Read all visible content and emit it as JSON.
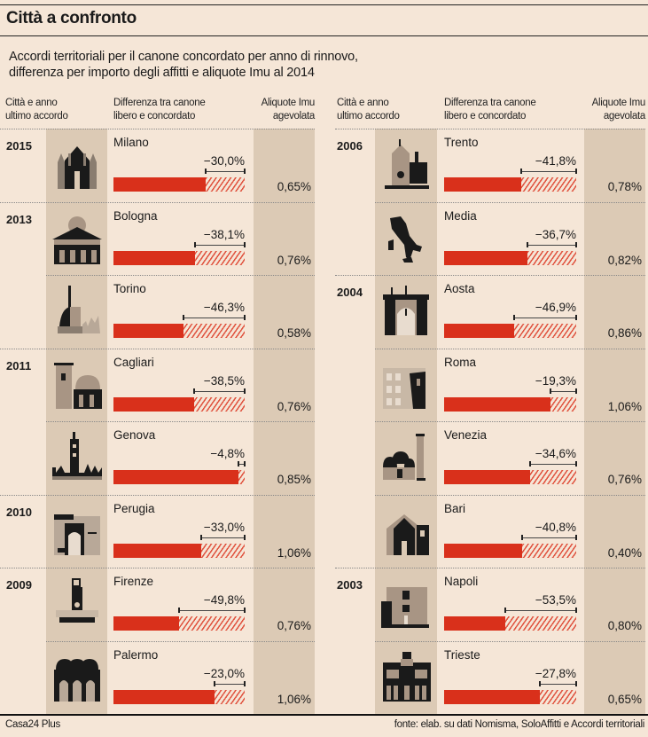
{
  "title": "Città a confronto",
  "subtitle_lines": [
    "Accordi territoriali per il canone concordato per anno di rinnovo,",
    "differenza per importo degli affitti e aliquote Imu al 2014"
  ],
  "headers": {
    "city_year": [
      "Città e anno",
      "ultimo accordo"
    ],
    "difference": [
      "Differenza tra canone",
      "libero e concordato"
    ],
    "imu": [
      "Aliquote Imu",
      "agevolata"
    ]
  },
  "footer": {
    "left": "Casa24 Plus",
    "right": "fonte: elab. su dati Nomisma, SoloAffitti e Accordi territoriali"
  },
  "colors": {
    "bar_red": "#d9301b",
    "hatch": "#e0533f",
    "background": "#f5e6d7",
    "column_shade": "#dccab5"
  },
  "chart_data": {
    "type": "bar",
    "title": "Città a confronto",
    "subtitle": "Accordi territoriali per il canone concordato per anno di rinnovo, differenza per importo degli affitti e aliquote Imu al 2014",
    "xlabel": "Differenza tra canone libero e concordato",
    "ylabel": "Città e anno ultimo accordo",
    "value_unit": "%",
    "xlim": [
      -100,
      0
    ],
    "columns": [
      {
        "rows": [
          {
            "year": "2015",
            "city": "Milano",
            "icon": "milan-cathedral-icon",
            "diff": -30.0,
            "diff_label": "−30,0%",
            "imu": 0.65,
            "imu_label": "0,65%"
          },
          {
            "year": "2013",
            "city": "Bologna",
            "icon": "bologna-palazzo-icon",
            "diff": -38.1,
            "diff_label": "−38,1%",
            "imu": 0.76,
            "imu_label": "0,76%"
          },
          {
            "year": "",
            "city": "Torino",
            "icon": "mole-antonelliana-icon",
            "diff": -46.3,
            "diff_label": "−46,3%",
            "imu": 0.58,
            "imu_label": "0,58%"
          },
          {
            "year": "2011",
            "city": "Cagliari",
            "icon": "cagliari-tower-icon",
            "diff": -38.5,
            "diff_label": "−38,5%",
            "imu": 0.76,
            "imu_label": "0,76%"
          },
          {
            "year": "",
            "city": "Genova",
            "icon": "lanterna-genova-icon",
            "diff": -4.8,
            "diff_label": "−4,8%",
            "imu": 0.85,
            "imu_label": "0,85%"
          },
          {
            "year": "2010",
            "city": "Perugia",
            "icon": "perugia-arch-icon",
            "diff": -33.0,
            "diff_label": "−33,0%",
            "imu": 1.06,
            "imu_label": "1,06%"
          },
          {
            "year": "2009",
            "city": "Firenze",
            "icon": "palazzo-vecchio-icon",
            "diff": -49.8,
            "diff_label": "−49,8%",
            "imu": 0.76,
            "imu_label": "0,76%"
          },
          {
            "year": "",
            "city": "Palermo",
            "icon": "palermo-domes-icon",
            "diff": -23.0,
            "diff_label": "−23,0%",
            "imu": 1.06,
            "imu_label": "1,06%"
          }
        ]
      },
      {
        "rows": [
          {
            "year": "2006",
            "city": "Trento",
            "icon": "trento-duomo-icon",
            "diff": -41.8,
            "diff_label": "−41,8%",
            "imu": 0.78,
            "imu_label": "0,78%"
          },
          {
            "year": "",
            "city": "Media",
            "icon": "italy-map-icon",
            "diff": -36.7,
            "diff_label": "−36,7%",
            "imu": 0.82,
            "imu_label": "0,82%"
          },
          {
            "year": "2004",
            "city": "Aosta",
            "icon": "aosta-arch-icon",
            "diff": -46.9,
            "diff_label": "−46,9%",
            "imu": 0.86,
            "imu_label": "0,86%"
          },
          {
            "year": "",
            "city": "Roma",
            "icon": "colosseum-icon",
            "diff": -19.3,
            "diff_label": "−19,3%",
            "imu": 1.06,
            "imu_label": "1,06%"
          },
          {
            "year": "",
            "city": "Venezia",
            "icon": "san-marco-icon",
            "diff": -34.6,
            "diff_label": "−34,6%",
            "imu": 0.76,
            "imu_label": "0,76%"
          },
          {
            "year": "",
            "city": "Bari",
            "icon": "bari-cathedral-icon",
            "diff": -40.8,
            "diff_label": "−40,8%",
            "imu": 0.4,
            "imu_label": "0,40%"
          },
          {
            "year": "2003",
            "city": "Napoli",
            "icon": "maschio-angioino-icon",
            "diff": -53.5,
            "diff_label": "−53,5%",
            "imu": 0.8,
            "imu_label": "0,80%"
          },
          {
            "year": "",
            "city": "Trieste",
            "icon": "trieste-municipio-icon",
            "diff": -27.8,
            "diff_label": "−27,8%",
            "imu": 0.65,
            "imu_label": "0,65%"
          }
        ]
      }
    ]
  }
}
